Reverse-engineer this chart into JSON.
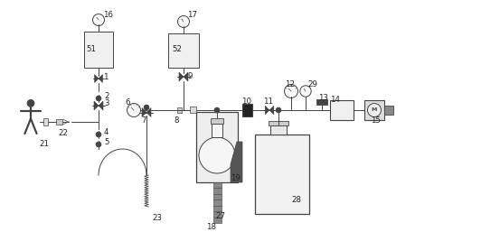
{
  "bg_color": "#ffffff",
  "lc": "#444444",
  "lc2": "#222222",
  "fig_w": 5.53,
  "fig_h": 2.57,
  "dpi": 100,
  "xmax": 5.53,
  "ymax": 2.57
}
